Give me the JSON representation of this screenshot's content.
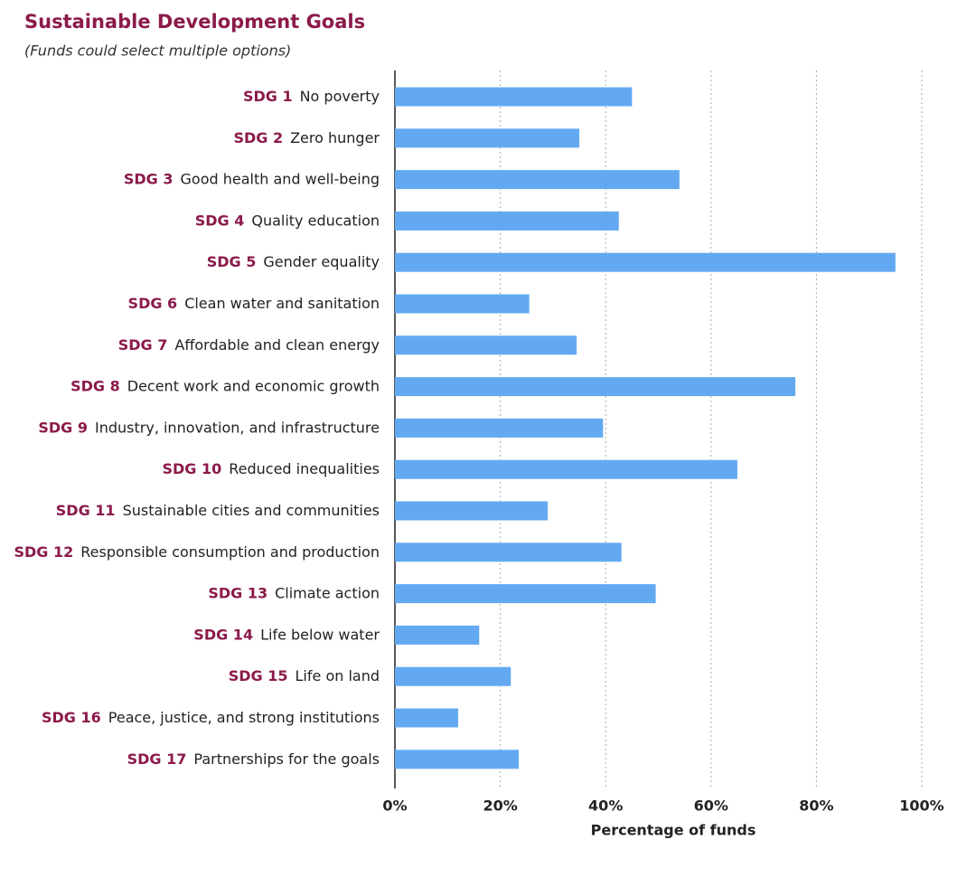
{
  "chart_data": {
    "type": "bar",
    "orientation": "horizontal",
    "title": "Sustainable Development Goals",
    "subtitle": "(Funds could select multiple options)",
    "x_label": "Percentage of funds",
    "codes": [
      "SDG 1",
      "SDG 2",
      "SDG 3",
      "SDG 4",
      "SDG 5",
      "SDG 6",
      "SDG 7",
      "SDG 8",
      "SDG 9",
      "SDG 10",
      "SDG 11",
      "SDG 12",
      "SDG 13",
      "SDG 14",
      "SDG 15",
      "SDG 16",
      "SDG 17"
    ],
    "categories": [
      "No poverty",
      "Zero hunger",
      "Good health and well-being",
      "Quality education",
      "Gender equality",
      "Clean water and sanitation",
      "Affordable and clean energy",
      "Decent work and economic growth",
      "Industry, innovation, and infrastructure",
      "Reduced inequalities",
      "Sustainable cities and communities",
      "Responsible consumption and production",
      "Climate action",
      "Life below water",
      "Life on land",
      "Peace, justice, and strong institutions",
      "Partnerships for the goals"
    ],
    "values": [
      45,
      35,
      54,
      42.5,
      95,
      25.5,
      34.5,
      76,
      39.5,
      65,
      29,
      43,
      49.5,
      16,
      22,
      12,
      23.5
    ],
    "color": "#63a9f2",
    "xlim": [
      0,
      100
    ],
    "xticks": [
      {
        "value": 0,
        "label": "0%"
      },
      {
        "value": 20,
        "label": "20%"
      },
      {
        "value": 40,
        "label": "40%"
      },
      {
        "value": 60,
        "label": "60%"
      },
      {
        "value": 80,
        "label": "80%"
      },
      {
        "value": 100,
        "label": "100%"
      }
    ],
    "grid": true
  }
}
